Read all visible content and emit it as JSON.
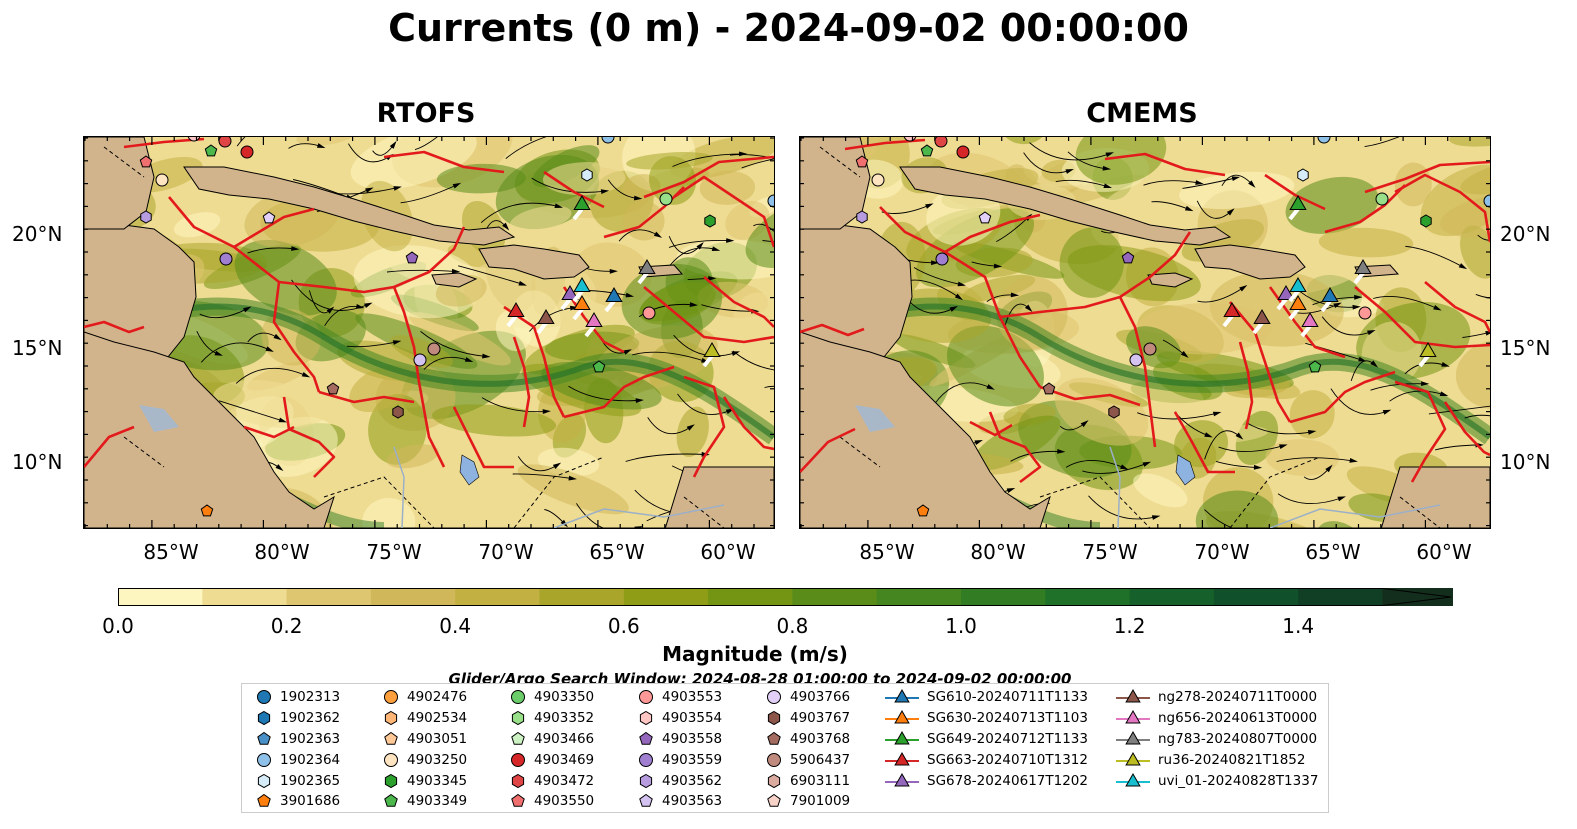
{
  "title": "Currents (0 m) - 2024-09-02 00:00:00",
  "panels": [
    {
      "title": "RTOFS"
    },
    {
      "title": "CMEMS"
    }
  ],
  "lat_labels": [
    "20°N",
    "15°N",
    "10°N"
  ],
  "lon_labels": [
    "85°W",
    "80°W",
    "75°W",
    "70°W",
    "65°W",
    "60°W"
  ],
  "colorbar": {
    "label": "Magnitude (m/s)",
    "ticks": [
      "0.0",
      "0.2",
      "0.4",
      "0.6",
      "0.8",
      "1.0",
      "1.2",
      "1.4"
    ],
    "colors": [
      "#fdf6c0",
      "#efdc93",
      "#dec56f",
      "#d0b85a",
      "#c2b043",
      "#a9a52a",
      "#8e9d15",
      "#739513",
      "#5a8c1a",
      "#468621",
      "#327d23",
      "#1f7028",
      "#15602b",
      "#10502a",
      "#113f25",
      "#132e1c"
    ]
  },
  "legend": {
    "title": "Glider/Argo Search Window: 2024-08-28 01:00:00 to 2024-09-02 00:00:00",
    "argo": [
      {
        "id": "1902313",
        "color": "#1f77b4",
        "marker": "circle"
      },
      {
        "id": "1902362",
        "color": "#1f77b4",
        "marker": "hexagon"
      },
      {
        "id": "1902363",
        "color": "#4a90c8",
        "marker": "pentagon"
      },
      {
        "id": "1902364",
        "color": "#8fc0e8",
        "marker": "circle"
      },
      {
        "id": "1902365",
        "color": "#d6ecf8",
        "marker": "hexagon"
      },
      {
        "id": "3901686",
        "color": "#ff7f0e",
        "marker": "pentagon"
      },
      {
        "id": "4902476",
        "color": "#ff9f3e",
        "marker": "circle"
      },
      {
        "id": "4902534",
        "color": "#ffb677",
        "marker": "hexagon"
      },
      {
        "id": "4903051",
        "color": "#ffc897",
        "marker": "pentagon"
      },
      {
        "id": "4903250",
        "color": "#ffe4c2",
        "marker": "circle"
      },
      {
        "id": "4903345",
        "color": "#2ca02c",
        "marker": "hexagon"
      },
      {
        "id": "4903349",
        "color": "#4cb84c",
        "marker": "pentagon"
      },
      {
        "id": "4903350",
        "color": "#6acd6a",
        "marker": "circle"
      },
      {
        "id": "4903352",
        "color": "#98df8a",
        "marker": "hexagon"
      },
      {
        "id": "4903466",
        "color": "#ccf2c4",
        "marker": "pentagon"
      },
      {
        "id": "4903469",
        "color": "#d62728",
        "marker": "circle"
      },
      {
        "id": "4903472",
        "color": "#e04546",
        "marker": "hexagon"
      },
      {
        "id": "4903550",
        "color": "#f07070",
        "marker": "pentagon"
      },
      {
        "id": "4903553",
        "color": "#ff9896",
        "marker": "circle"
      },
      {
        "id": "4903554",
        "color": "#ffc6c4",
        "marker": "hexagon"
      },
      {
        "id": "4903558",
        "color": "#9467bd",
        "marker": "pentagon"
      },
      {
        "id": "4903559",
        "color": "#a07fd0",
        "marker": "circle"
      },
      {
        "id": "4903562",
        "color": "#b79de0",
        "marker": "hexagon"
      },
      {
        "id": "4903563",
        "color": "#d4c2f0",
        "marker": "pentagon"
      },
      {
        "id": "4903766",
        "color": "#e3d0f8",
        "marker": "circle"
      },
      {
        "id": "4903767",
        "color": "#8c564b",
        "marker": "hexagon"
      },
      {
        "id": "4903768",
        "color": "#a46b60",
        "marker": "pentagon"
      },
      {
        "id": "5906437",
        "color": "#c08a7e",
        "marker": "circle"
      },
      {
        "id": "6903111",
        "color": "#dbab9f",
        "marker": "hexagon"
      },
      {
        "id": "7901009",
        "color": "#f7d2c8",
        "marker": "pentagon"
      }
    ],
    "gliders": [
      {
        "id": "SG610-20240711T1133",
        "color": "#1f77b4"
      },
      {
        "id": "SG630-20240713T1103",
        "color": "#ff7f0e"
      },
      {
        "id": "SG649-20240712T1133",
        "color": "#2ca02c"
      },
      {
        "id": "SG663-20240710T1312",
        "color": "#d62728"
      },
      {
        "id": "SG678-20240617T1202",
        "color": "#9467bd"
      },
      {
        "id": "ng278-20240711T0000",
        "color": "#8c564b"
      },
      {
        "id": "ng656-20240613T0000",
        "color": "#e377c2"
      },
      {
        "id": "ng783-20240807T0000",
        "color": "#7f7f7f"
      },
      {
        "id": "ru36-20240821T1852",
        "color": "#bcbd22"
      },
      {
        "id": "uvi_01-20240828T1337",
        "color": "#17becf"
      }
    ]
  }
}
